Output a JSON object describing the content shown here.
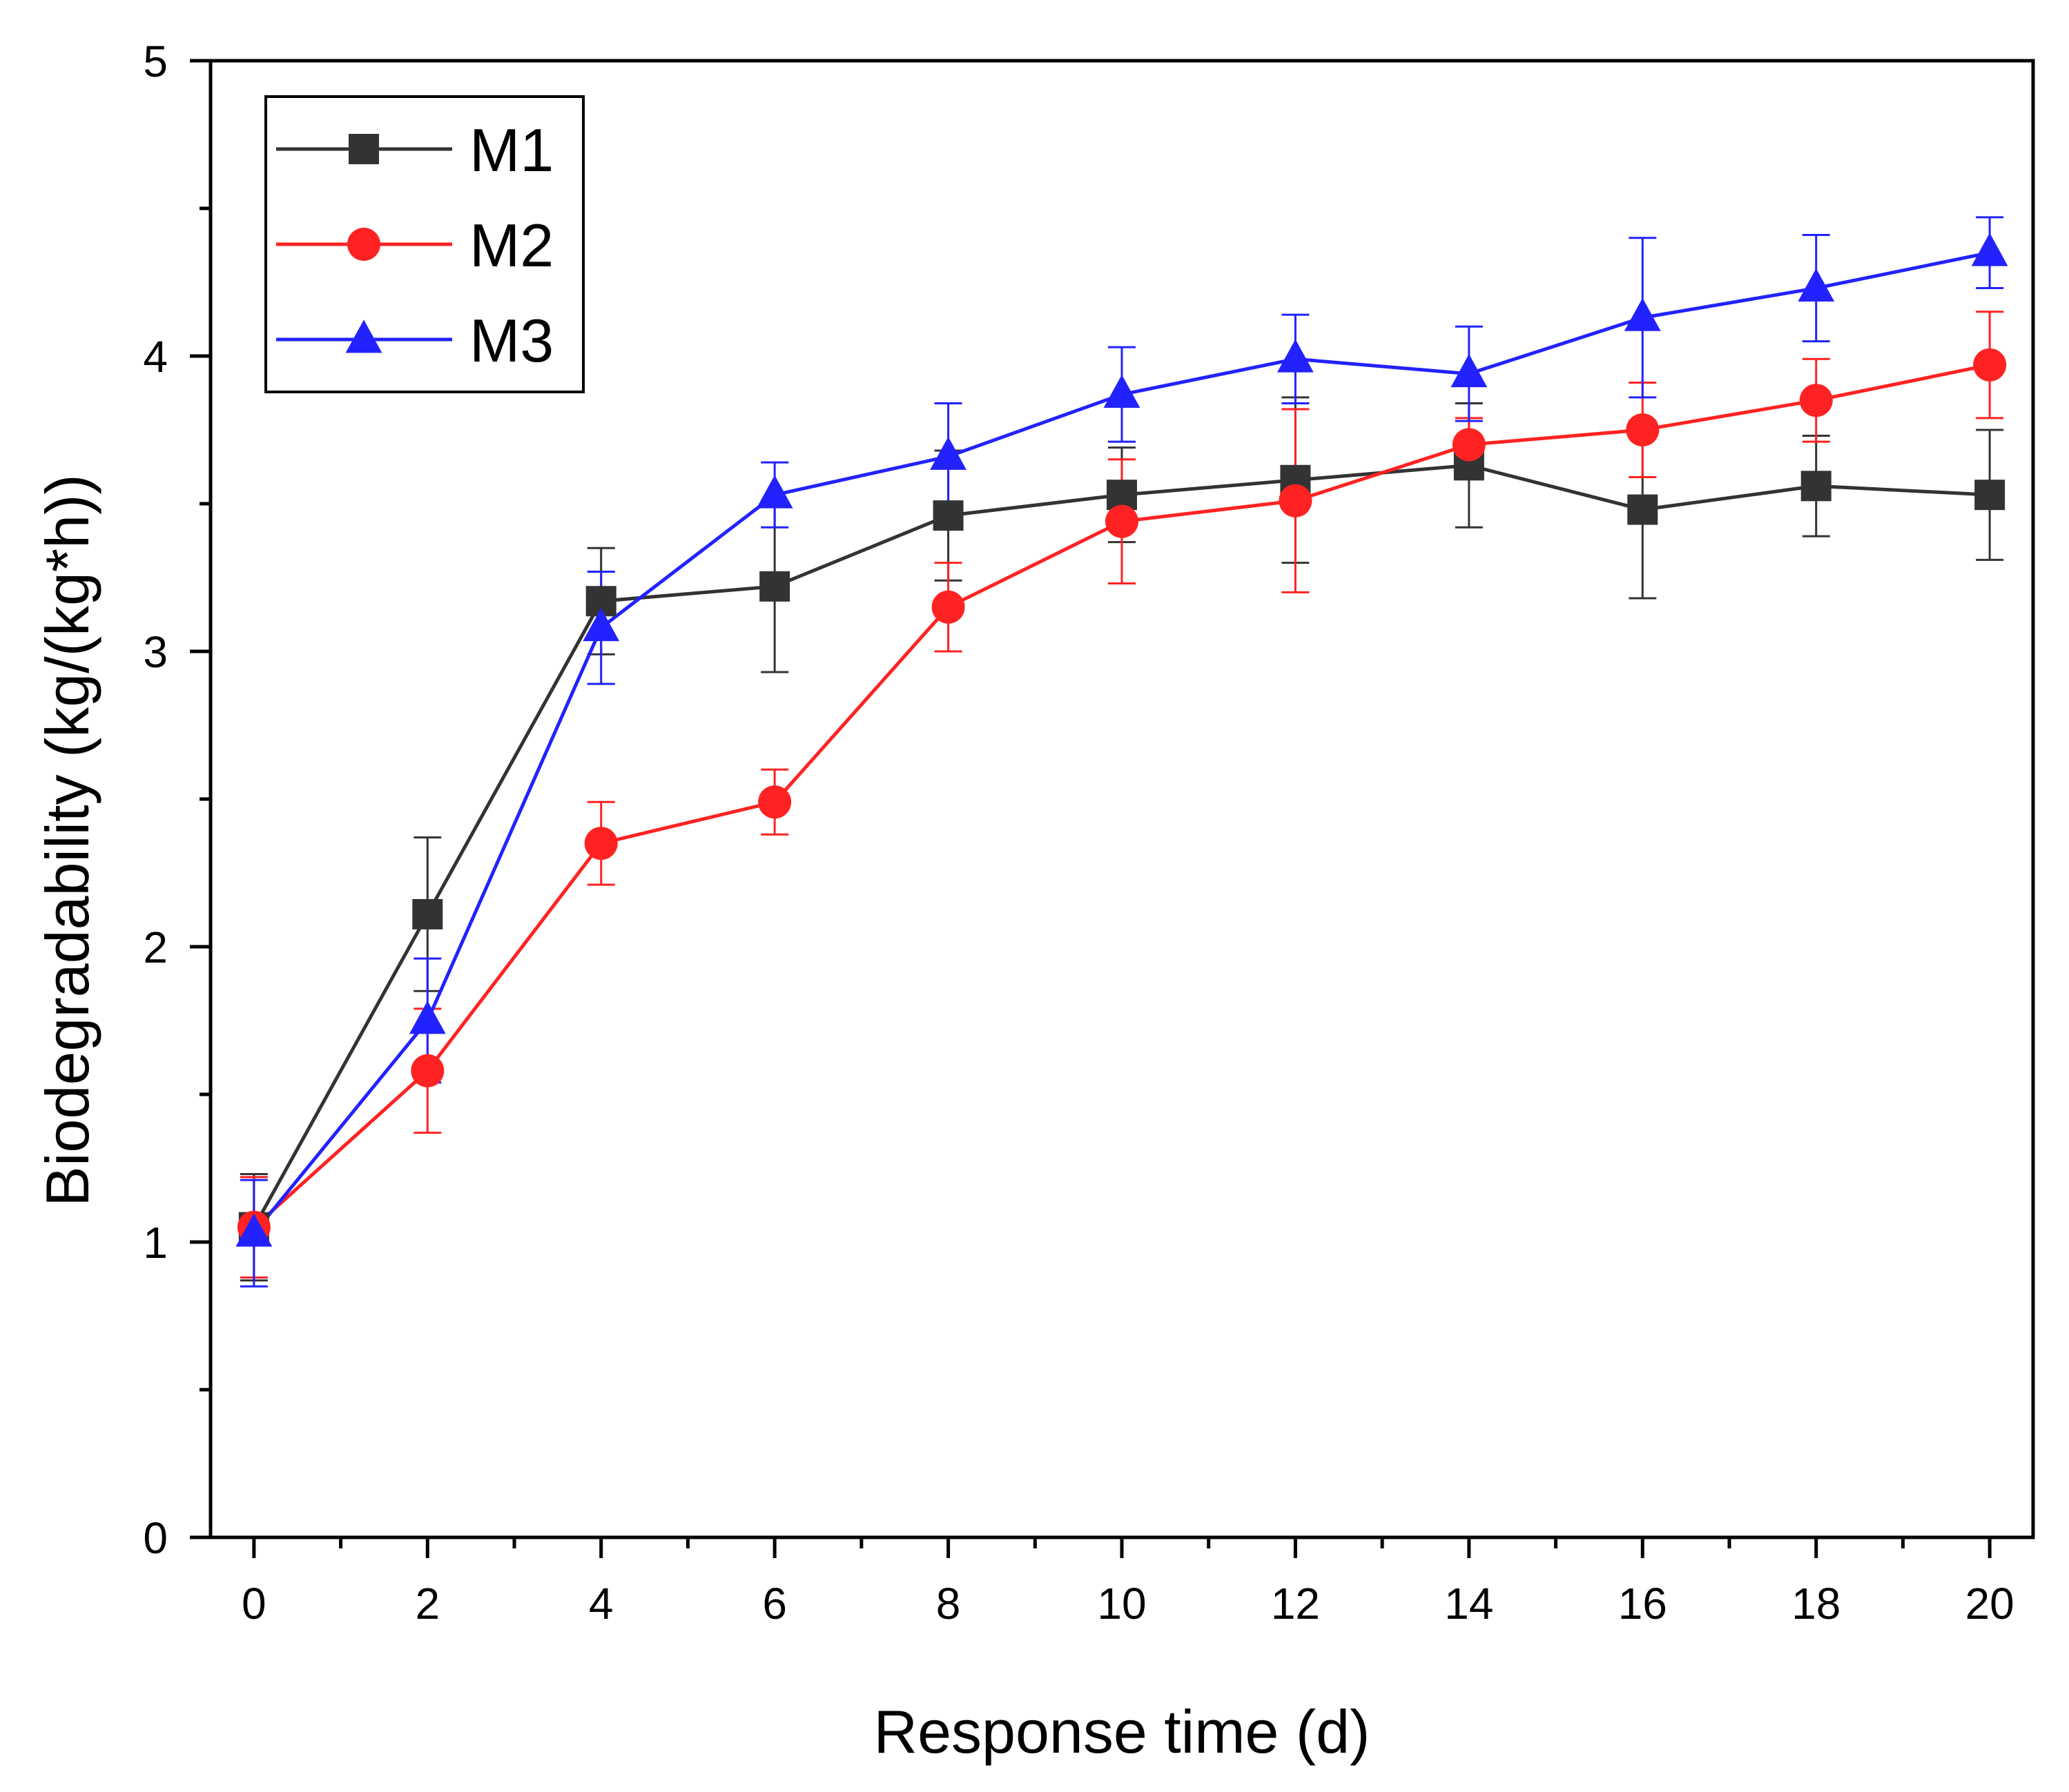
{
  "chart_data": {
    "type": "line",
    "title": "",
    "xlabel": "Response time (d)",
    "ylabel": "Biodegradability (kg/(kg*h))",
    "xlim": [
      -0.5,
      20.5
    ],
    "ylim": [
      0,
      5
    ],
    "x_ticks": [
      0,
      2,
      4,
      6,
      8,
      10,
      12,
      14,
      16,
      18,
      20
    ],
    "y_ticks": [
      0,
      1,
      2,
      3,
      4,
      5
    ],
    "grid": false,
    "legend_position": "top-left",
    "x": [
      0,
      2,
      4,
      6,
      8,
      10,
      12,
      14,
      16,
      18,
      20
    ],
    "series": [
      {
        "name": "M1",
        "color": "#333333",
        "marker": "square",
        "values": [
          1.05,
          2.11,
          3.17,
          3.22,
          3.46,
          3.53,
          3.58,
          3.63,
          3.48,
          3.56,
          3.53
        ],
        "errors": [
          0.18,
          0.26,
          0.18,
          0.29,
          0.22,
          0.16,
          0.28,
          0.21,
          0.3,
          0.17,
          0.22
        ]
      },
      {
        "name": "M2",
        "color": "#ff2222",
        "marker": "circle",
        "values": [
          1.05,
          1.58,
          2.35,
          2.49,
          3.15,
          3.44,
          3.51,
          3.7,
          3.75,
          3.85,
          3.97
        ],
        "errors": [
          0.17,
          0.21,
          0.14,
          0.11,
          0.15,
          0.21,
          0.31,
          0.09,
          0.16,
          0.14,
          0.18
        ]
      },
      {
        "name": "M3",
        "color": "#2222ff",
        "marker": "triangle",
        "values": [
          1.03,
          1.75,
          3.08,
          3.53,
          3.66,
          3.87,
          3.99,
          3.94,
          4.13,
          4.23,
          4.35
        ],
        "errors": [
          0.18,
          0.21,
          0.19,
          0.11,
          0.18,
          0.16,
          0.15,
          0.16,
          0.27,
          0.18,
          0.12
        ]
      }
    ]
  }
}
